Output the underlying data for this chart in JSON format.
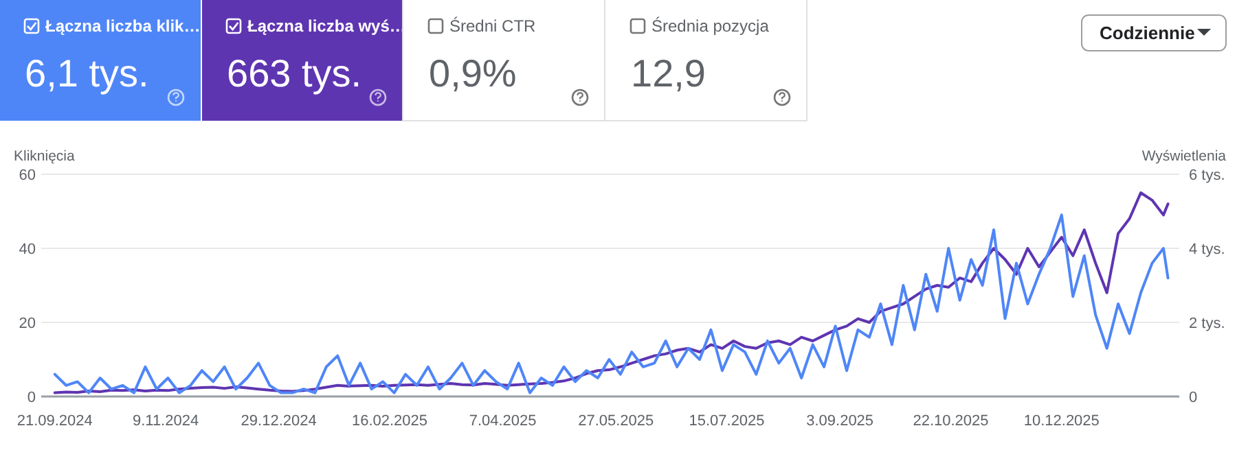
{
  "chart_data": {
    "type": "line",
    "ylabel": "Kliknięcia",
    "y2label": "Wyświetlenia",
    "x": [
      "2024-09-21",
      "2024-09-26",
      "2024-10-01",
      "2024-10-06",
      "2024-10-11",
      "2024-10-16",
      "2024-10-21",
      "2024-10-26",
      "2024-10-31",
      "2024-11-05",
      "2024-11-10",
      "2024-11-15",
      "2024-11-20",
      "2024-11-25",
      "2024-11-30",
      "2024-12-05",
      "2024-12-10",
      "2024-12-15",
      "2024-12-20",
      "2024-12-25",
      "2024-12-30",
      "2025-01-04",
      "2025-01-09",
      "2025-01-14",
      "2025-01-19",
      "2025-01-24",
      "2025-01-29",
      "2025-02-03",
      "2025-02-08",
      "2025-02-13",
      "2025-02-18",
      "2025-02-23",
      "2025-02-28",
      "2025-03-05",
      "2025-03-10",
      "2025-03-15",
      "2025-03-20",
      "2025-03-25",
      "2025-03-30",
      "2025-04-04",
      "2025-04-09",
      "2025-04-14",
      "2025-04-19",
      "2025-04-24",
      "2025-04-29",
      "2025-05-04",
      "2025-05-09",
      "2025-05-14",
      "2025-05-19",
      "2025-05-24",
      "2025-05-29",
      "2025-06-03",
      "2025-06-08",
      "2025-06-13",
      "2025-06-18",
      "2025-06-23",
      "2025-06-28",
      "2025-07-03",
      "2025-07-08",
      "2025-07-13",
      "2025-07-18",
      "2025-07-23",
      "2025-07-28",
      "2025-08-02",
      "2025-08-07",
      "2025-08-12",
      "2025-08-17",
      "2025-08-22",
      "2025-08-27",
      "2025-09-01",
      "2025-09-06",
      "2025-09-11",
      "2025-09-16",
      "2025-09-21",
      "2025-09-26",
      "2025-10-01",
      "2025-10-06",
      "2025-10-11",
      "2025-10-16",
      "2025-10-21",
      "2025-10-26",
      "2025-10-31",
      "2025-11-05",
      "2025-11-10",
      "2025-11-15",
      "2025-11-20",
      "2025-11-25",
      "2025-11-30",
      "2025-12-05",
      "2025-12-10",
      "2025-12-15",
      "2025-12-20",
      "2025-12-25",
      "2025-12-30",
      "2026-01-04",
      "2026-01-09",
      "2026-01-14",
      "2026-01-19",
      "2026-01-24",
      "2026-01-26"
    ],
    "series": [
      {
        "name": "Łączna liczba klik…",
        "color": "#4f86f7",
        "values": [
          6,
          3,
          4,
          1,
          5,
          2,
          3,
          1,
          8,
          2,
          5,
          1,
          3,
          7,
          4,
          8,
          2,
          5,
          9,
          3,
          1,
          1,
          2,
          1,
          8,
          11,
          3,
          9,
          2,
          4,
          1,
          6,
          3,
          8,
          2,
          5,
          9,
          3,
          7,
          4,
          2,
          9,
          1,
          5,
          3,
          8,
          4,
          7,
          5,
          10,
          6,
          12,
          8,
          9,
          15,
          8,
          13,
          10,
          18,
          7,
          14,
          12,
          6,
          15,
          9,
          13,
          5,
          14,
          8,
          19,
          7,
          18,
          16,
          25,
          14,
          30,
          18,
          33,
          23,
          40,
          26,
          37,
          30,
          45,
          21,
          36,
          25,
          33,
          40,
          49,
          27,
          38,
          22,
          13,
          25,
          17,
          28,
          36,
          40,
          32
        ]
      },
      {
        "name": "Łączna liczba wyś…",
        "color": "#5e35b1",
        "axis": "y2",
        "values": [
          0.1,
          0.12,
          0.11,
          0.15,
          0.13,
          0.17,
          0.16,
          0.18,
          0.15,
          0.17,
          0.16,
          0.2,
          0.22,
          0.24,
          0.25,
          0.22,
          0.26,
          0.23,
          0.2,
          0.17,
          0.15,
          0.14,
          0.16,
          0.2,
          0.25,
          0.3,
          0.28,
          0.29,
          0.3,
          0.28,
          0.3,
          0.31,
          0.32,
          0.3,
          0.33,
          0.35,
          0.32,
          0.31,
          0.35,
          0.33,
          0.3,
          0.32,
          0.34,
          0.35,
          0.38,
          0.42,
          0.5,
          0.62,
          0.7,
          0.72,
          0.8,
          0.9,
          1.0,
          1.1,
          1.15,
          1.25,
          1.3,
          1.2,
          1.4,
          1.3,
          1.5,
          1.35,
          1.3,
          1.45,
          1.5,
          1.4,
          1.6,
          1.5,
          1.65,
          1.8,
          1.9,
          2.1,
          2.0,
          2.3,
          2.4,
          2.5,
          2.7,
          2.9,
          3.0,
          2.95,
          3.2,
          3.1,
          3.6,
          4.0,
          3.7,
          3.3,
          4.0,
          3.5,
          3.9,
          4.3,
          3.8,
          4.5,
          3.6,
          2.8,
          4.4,
          4.8,
          5.5,
          5.3,
          4.9,
          5.2
        ]
      }
    ],
    "xlim": [
      "2024-09-15",
      "2026-01-31"
    ],
    "xticks": [
      {
        "value": "2024-09-21",
        "label": "21.09.2024"
      },
      {
        "value": "2024-11-09",
        "label": "9.11.2024"
      },
      {
        "value": "2024-12-29",
        "label": "29.12.2024"
      },
      {
        "value": "2025-02-16",
        "label": "16.02.2025"
      },
      {
        "value": "2025-04-07",
        "label": "7.04.2025"
      },
      {
        "value": "2025-05-27",
        "label": "27.05.2025"
      },
      {
        "value": "2025-07-15",
        "label": "15.07.2025"
      },
      {
        "value": "2025-09-03",
        "label": "3.09.2025"
      },
      {
        "value": "2025-10-22",
        "label": "22.10.2025"
      },
      {
        "value": "2025-12-10",
        "label": "10.12.2025"
      }
    ],
    "ylim": [
      0,
      60
    ],
    "yticks": [
      0,
      20,
      40,
      60
    ],
    "y2lim": [
      0,
      6
    ],
    "y2ticks": [
      0,
      {
        "value": 2,
        "label": "2 tys."
      },
      {
        "value": 4,
        "label": "4 tys."
      },
      {
        "value": 6,
        "label": "6 tys."
      }
    ],
    "grid": "y",
    "legend": "top left",
    "marker": "none",
    "line_style": "solid",
    "annotations": [
      "6,1 tys.",
      "663 tys.",
      "Średni CTR",
      "0,9%",
      "Średnia pozycja",
      "12,9",
      "Codziennie"
    ]
  }
}
